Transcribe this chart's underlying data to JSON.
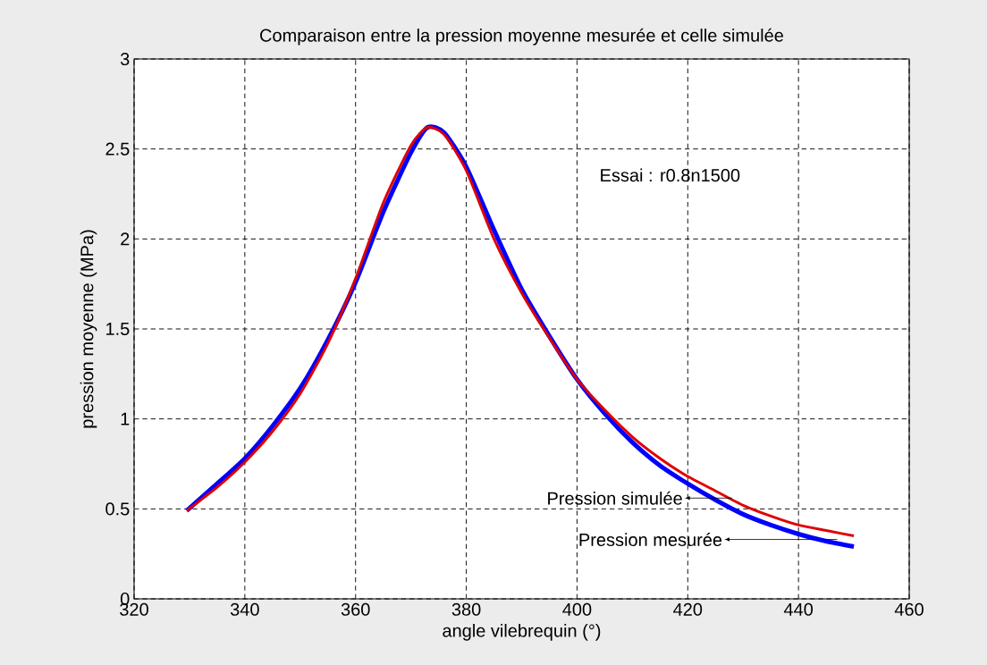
{
  "chart_data": {
    "type": "line",
    "title": "Comparaison entre la pression moyenne mesurée et celle simulée",
    "xlabel": "angle vilebrequin (°)",
    "ylabel": "pression moyenne (MPa)",
    "x": [
      329.5,
      335,
      340,
      345,
      350,
      355,
      360,
      365,
      370,
      373,
      376,
      380,
      385,
      390,
      395,
      400,
      405,
      410,
      415,
      420,
      425,
      430,
      435,
      440,
      445,
      450
    ],
    "series": [
      {
        "color": "#0000ff",
        "values": [
          0.49,
          0.64,
          0.78,
          0.96,
          1.17,
          1.44,
          1.76,
          2.15,
          2.48,
          2.62,
          2.59,
          2.4,
          2.05,
          1.72,
          1.46,
          1.22,
          1.03,
          0.87,
          0.74,
          0.64,
          0.55,
          0.47,
          0.41,
          0.36,
          0.32,
          0.29
        ]
      },
      {
        "color": "#e00000",
        "values": [
          0.49,
          0.62,
          0.76,
          0.93,
          1.14,
          1.42,
          1.78,
          2.2,
          2.52,
          2.62,
          2.58,
          2.38,
          2.0,
          1.7,
          1.45,
          1.22,
          1.05,
          0.9,
          0.78,
          0.68,
          0.6,
          0.52,
          0.46,
          0.41,
          0.38,
          0.35
        ]
      }
    ],
    "xlim": [
      320,
      460
    ],
    "ylim": [
      0,
      3
    ],
    "xticks": [
      320,
      340,
      360,
      380,
      400,
      420,
      440,
      460
    ],
    "yticks": [
      0,
      0.5,
      1,
      1.5,
      2,
      2.5,
      3
    ],
    "grid": true,
    "line_style": "solid",
    "marker": "none",
    "annotations": [
      "Essai : r0.8n1500",
      {
        "text": "Pression simulée",
        "x": 428,
        "y": 0.56
      },
      {
        "text": "Pression mesurée",
        "x": 447,
        "y": 0.33
      }
    ]
  }
}
